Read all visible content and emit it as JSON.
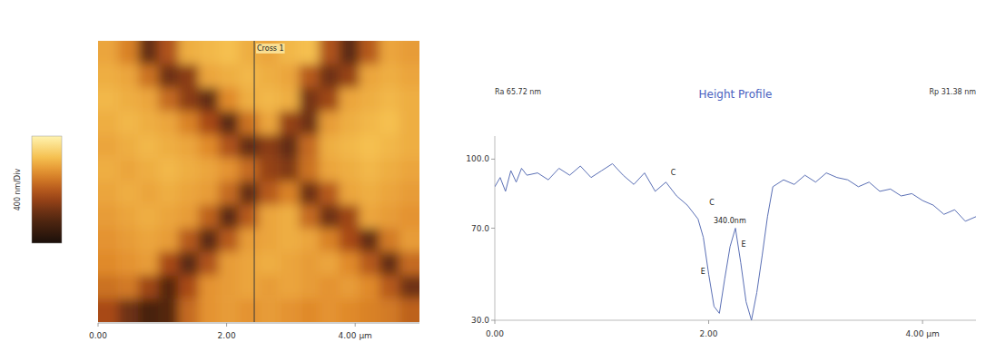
{
  "chart_data": [
    {
      "type": "heatmap",
      "colorbar_label": "400 nm/Div",
      "color_range": [
        0,
        400
      ],
      "xlim": [
        0,
        5
      ],
      "xticks": [
        {
          "value": 0,
          "label": "0.00"
        },
        {
          "value": 2,
          "label": "2.00"
        },
        {
          "value": 4,
          "label": "4.00 µm"
        }
      ],
      "tick_labels": "x",
      "annotations": [
        {
          "text": "Cross 1",
          "x": 2.43
        }
      ],
      "cells": [
        [
          290,
          250,
          110,
          190,
          300,
          310,
          320,
          300,
          290,
          310,
          320,
          190,
          100,
          200,
          290,
          280
        ],
        [
          300,
          290,
          230,
          120,
          150,
          290,
          300,
          310,
          300,
          290,
          200,
          120,
          160,
          290,
          300,
          290
        ],
        [
          310,
          300,
          290,
          220,
          150,
          110,
          260,
          300,
          310,
          300,
          130,
          170,
          290,
          300,
          310,
          300
        ],
        [
          300,
          310,
          300,
          290,
          250,
          180,
          100,
          230,
          290,
          160,
          120,
          280,
          300,
          310,
          320,
          300
        ],
        [
          290,
          300,
          310,
          300,
          290,
          260,
          190,
          110,
          150,
          110,
          220,
          300,
          310,
          320,
          310,
          300
        ],
        [
          300,
          290,
          300,
          310,
          300,
          290,
          270,
          220,
          160,
          140,
          230,
          290,
          300,
          310,
          300,
          290
        ],
        [
          290,
          300,
          290,
          300,
          290,
          280,
          220,
          110,
          200,
          250,
          120,
          200,
          290,
          300,
          290,
          280
        ],
        [
          280,
          290,
          300,
          290,
          280,
          210,
          100,
          200,
          290,
          300,
          220,
          120,
          170,
          290,
          280,
          270
        ],
        [
          270,
          280,
          290,
          280,
          200,
          100,
          200,
          280,
          290,
          300,
          290,
          250,
          180,
          110,
          240,
          280
        ],
        [
          260,
          270,
          280,
          180,
          100,
          190,
          280,
          290,
          300,
          290,
          280,
          290,
          260,
          200,
          110,
          220
        ],
        [
          230,
          240,
          170,
          90,
          180,
          270,
          280,
          290,
          280,
          290,
          280,
          270,
          280,
          260,
          200,
          120
        ],
        [
          180,
          120,
          70,
          90,
          220,
          270,
          280,
          270,
          280,
          270,
          260,
          270,
          260,
          250,
          240,
          210
        ]
      ]
    },
    {
      "type": "line",
      "title": "Height Profile",
      "left_note": "Ra 65.72 nm",
      "right_note": "Rp 31.38 nm",
      "xlim": [
        0,
        4.5
      ],
      "xticks": [
        {
          "value": 0,
          "label": "0.00"
        },
        {
          "value": 2,
          "label": "2.00"
        },
        {
          "value": 4,
          "label": "4.00 µm"
        }
      ],
      "ylim": [
        30,
        110
      ],
      "yticks": [
        {
          "value": 100,
          "label": "100.0"
        },
        {
          "value": 70,
          "label": "70.0"
        },
        {
          "value": 30,
          "label": "30.0"
        }
      ],
      "series": [
        {
          "color": "#5a6fb5",
          "x": [
            0,
            0.05,
            0.1,
            0.15,
            0.2,
            0.25,
            0.3,
            0.4,
            0.5,
            0.6,
            0.7,
            0.8,
            0.9,
            1.0,
            1.1,
            1.2,
            1.3,
            1.4,
            1.5,
            1.6,
            1.7,
            1.8,
            1.9,
            1.95,
            2.0,
            2.05,
            2.1,
            2.15,
            2.2,
            2.25,
            2.3,
            2.35,
            2.4,
            2.45,
            2.5,
            2.55,
            2.6,
            2.7,
            2.8,
            2.9,
            3.0,
            3.1,
            3.2,
            3.3,
            3.4,
            3.5,
            3.6,
            3.7,
            3.8,
            3.9,
            4.0,
            4.1,
            4.2,
            4.3,
            4.4,
            4.5
          ],
          "values": [
            88,
            92,
            86,
            95,
            90,
            96,
            93,
            94,
            91,
            96,
            93,
            97,
            92,
            95,
            98,
            93,
            89,
            94,
            86,
            90,
            84,
            80,
            74,
            66,
            50,
            36,
            33,
            48,
            62,
            70,
            55,
            38,
            30,
            42,
            58,
            75,
            88,
            91,
            89,
            93,
            90,
            94,
            92,
            91,
            88,
            90,
            86,
            87,
            84,
            85,
            82,
            80,
            76,
            78,
            73,
            75
          ]
        }
      ],
      "annotations": [
        {
          "text": "C",
          "x": 1.62,
          "y": 93
        },
        {
          "text": "C",
          "x": 1.98,
          "y": 80
        },
        {
          "text": "340.0nm",
          "x": 2.02,
          "y": 72
        },
        {
          "text": "E",
          "x": 1.9,
          "y": 50
        },
        {
          "text": "E",
          "x": 2.28,
          "y": 62
        }
      ]
    }
  ]
}
